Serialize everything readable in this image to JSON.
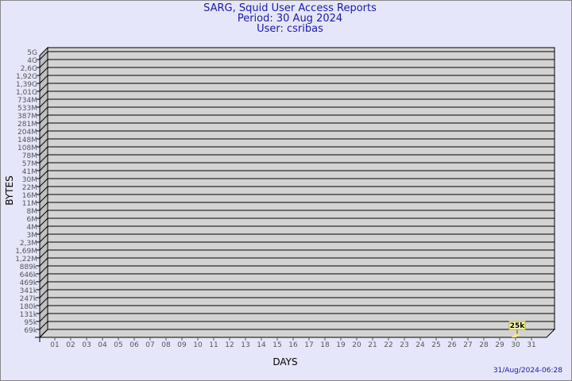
{
  "title": [
    "SARG, Squid User Access Reports",
    "Period: 30 Aug 2024",
    "User: csribas"
  ],
  "timestamp": "31/Aug/2024-06:28",
  "chart_data": {
    "type": "bar",
    "title": "SARG, Squid User Access Reports",
    "xlabel": "DAYS",
    "ylabel": "BYTES",
    "y_tick_labels": [
      "5G",
      "4G",
      "2,6G",
      "1,92G",
      "1,39G",
      "1,01G",
      "734M",
      "533M",
      "387M",
      "281M",
      "204M",
      "148M",
      "108M",
      "78M",
      "57M",
      "41M",
      "30M",
      "22M",
      "16M",
      "11M",
      "8M",
      "6M",
      "4M",
      "3M",
      "2,3M",
      "1,69M",
      "1,22M",
      "889k",
      "646k",
      "469k",
      "341k",
      "247k",
      "180k",
      "131k",
      "95k",
      "69k"
    ],
    "categories": [
      "01",
      "02",
      "03",
      "04",
      "05",
      "06",
      "07",
      "08",
      "09",
      "10",
      "11",
      "12",
      "13",
      "14",
      "15",
      "16",
      "17",
      "18",
      "19",
      "20",
      "21",
      "22",
      "23",
      "24",
      "25",
      "26",
      "27",
      "28",
      "29",
      "30",
      "31"
    ],
    "bars": [
      {
        "day": "30",
        "value": 25000,
        "label": "25k"
      }
    ],
    "grid": true,
    "colors": {
      "plot": "#d3d3d3",
      "bar": "#ffe680",
      "text": "#1a1aa6",
      "tick": "#555555"
    }
  }
}
